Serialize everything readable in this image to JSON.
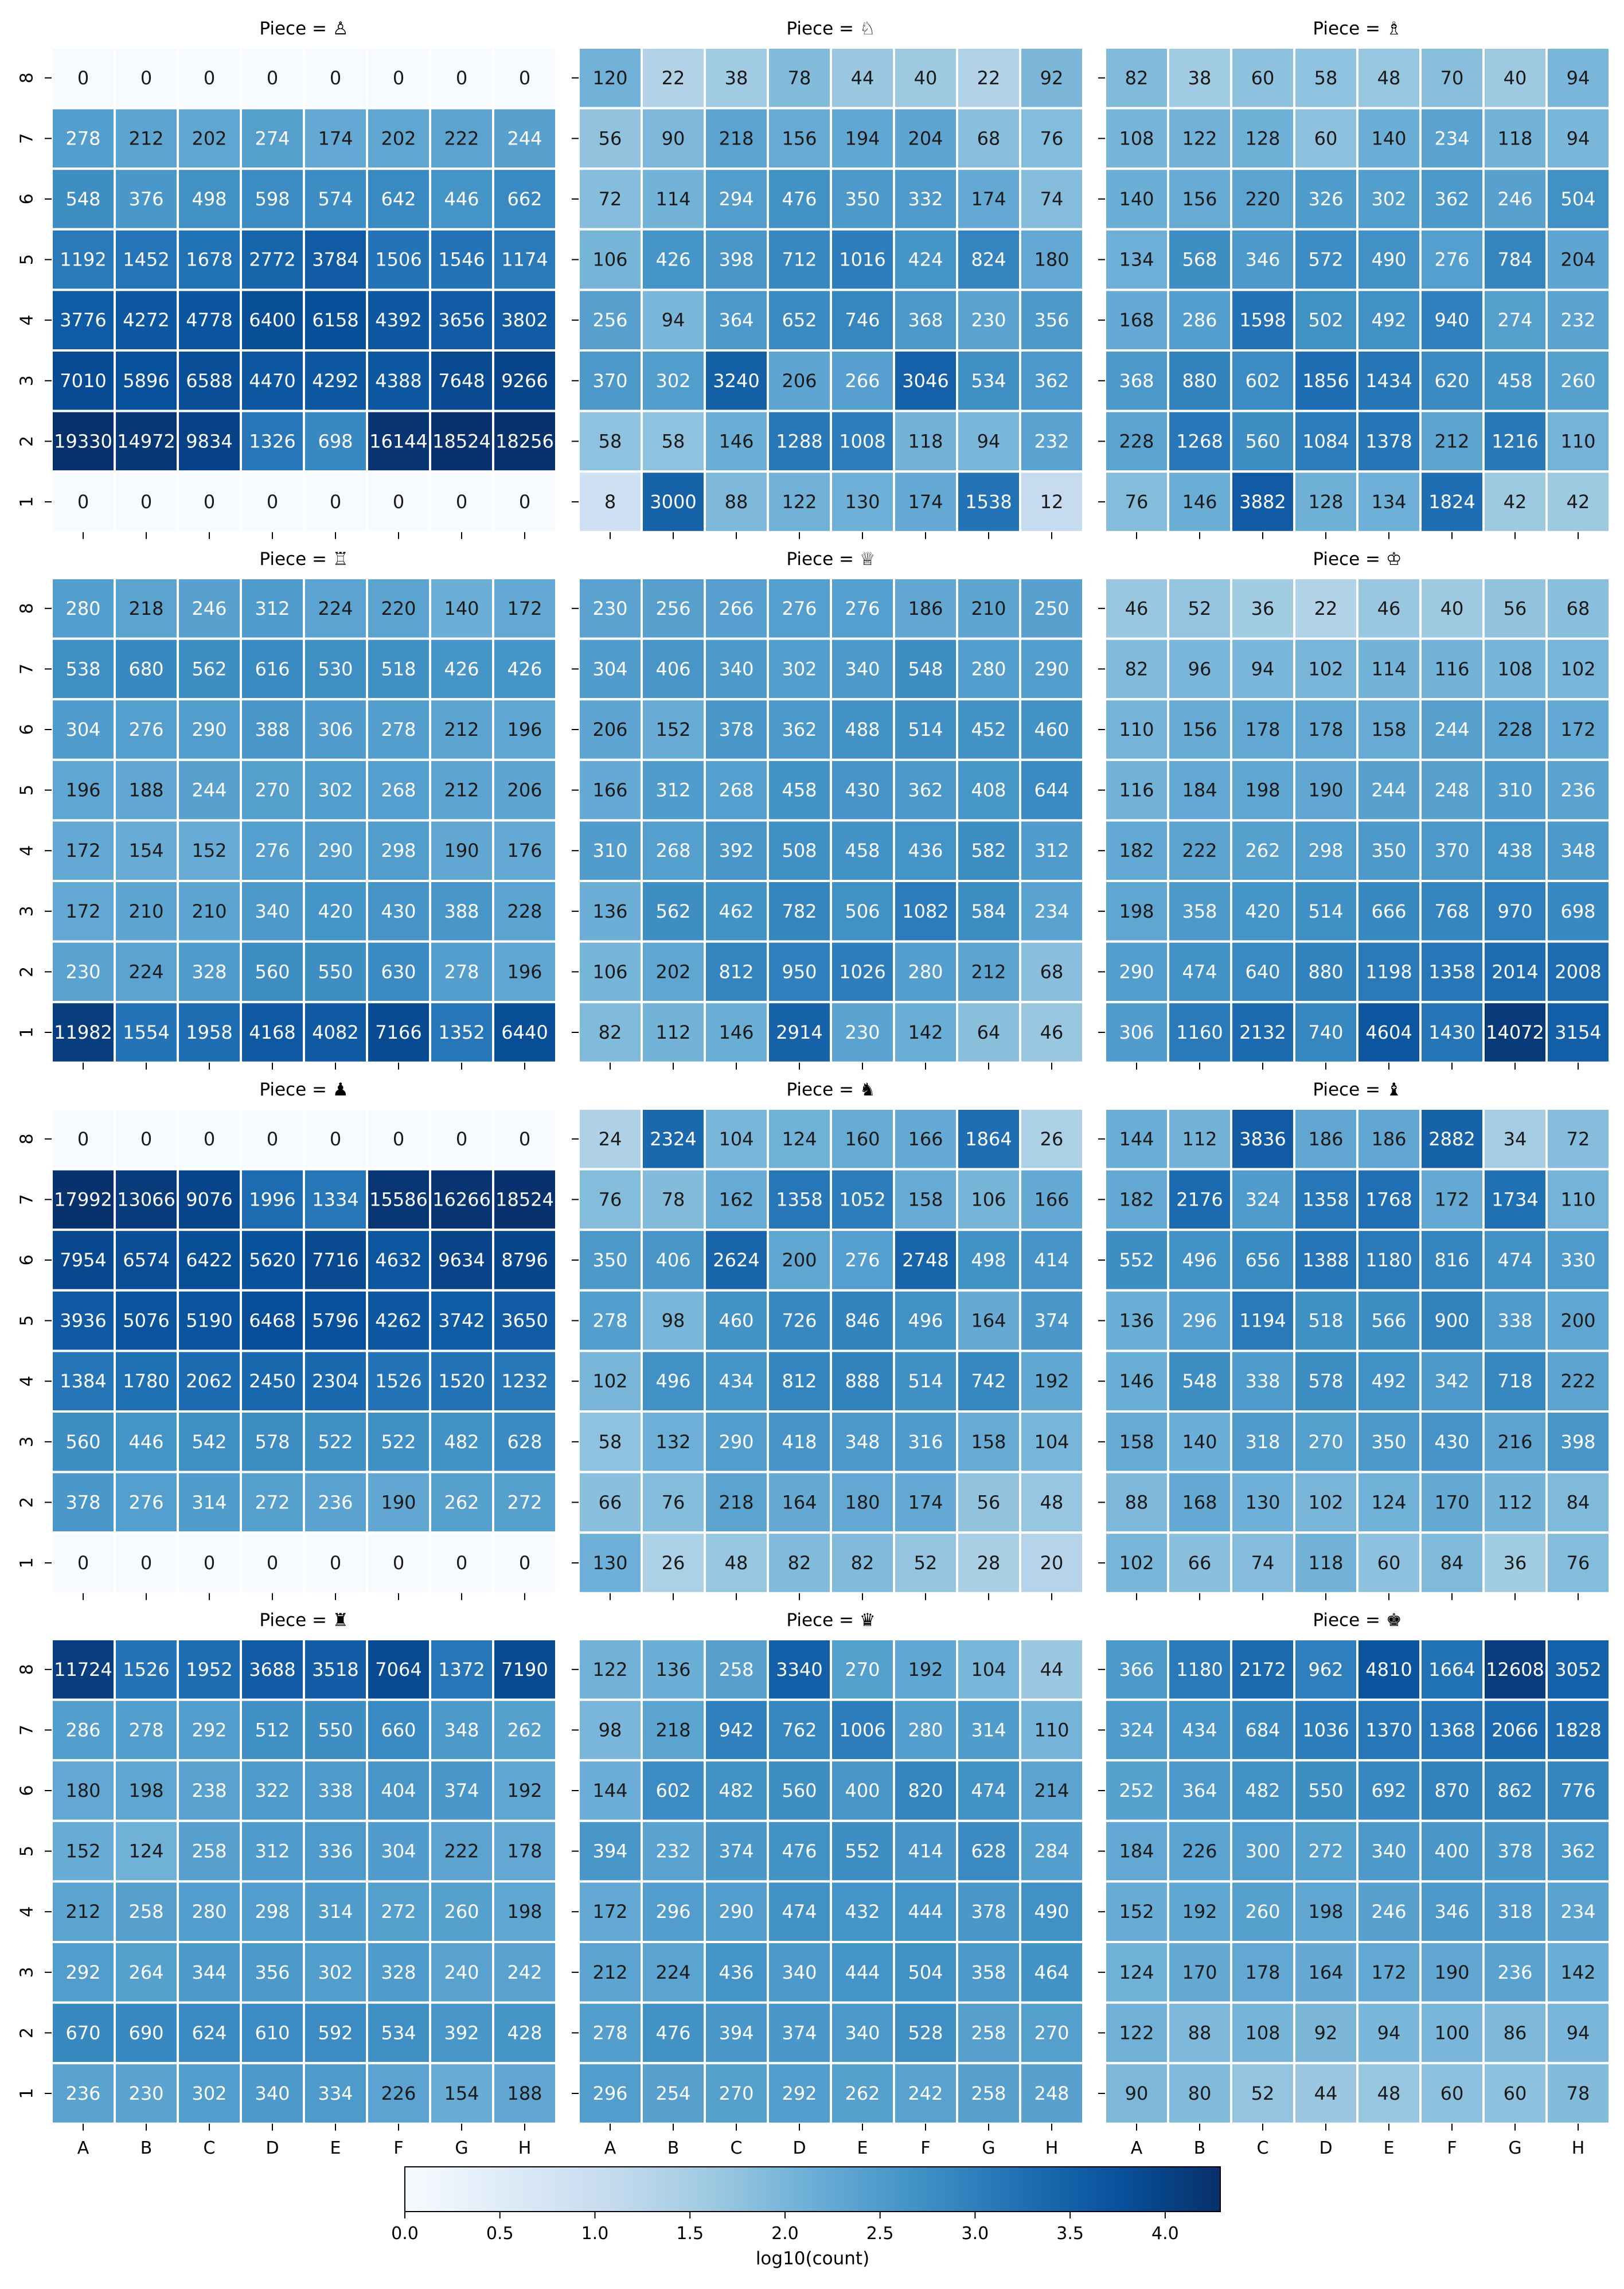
{
  "chart_data": {
    "type": "heatmap",
    "layout": "4 rows × 3 columns of small multiples",
    "color_scale": "log10(count)",
    "colormap": "Blues",
    "colors": {
      "low": "#f7fbff",
      "high": "#08306b",
      "grid": "#ffffff",
      "text_light": "#ffffff",
      "text_dark": "#1a1a1a"
    },
    "files": [
      "A",
      "B",
      "C",
      "D",
      "E",
      "F",
      "G",
      "H"
    ],
    "ranks": [
      "8",
      "7",
      "6",
      "5",
      "4",
      "3",
      "2",
      "1"
    ],
    "colorbar": {
      "label": "log10(count)",
      "min": 0.0,
      "max": 4.29,
      "ticks": [
        0.0,
        0.5,
        1.0,
        1.5,
        2.0,
        2.5,
        3.0,
        3.5,
        4.0
      ],
      "tick_labels": [
        "0.0",
        "0.5",
        "1.0",
        "1.5",
        "2.0",
        "2.5",
        "3.0",
        "3.5",
        "4.0"
      ]
    },
    "panels": [
      {
        "title": "Piece = ♙",
        "values": [
          [
            0,
            0,
            0,
            0,
            0,
            0,
            0,
            0
          ],
          [
            278,
            212,
            202,
            274,
            174,
            202,
            222,
            244
          ],
          [
            548,
            376,
            498,
            598,
            574,
            642,
            446,
            662
          ],
          [
            1192,
            1452,
            1678,
            2772,
            3784,
            1506,
            1546,
            1174
          ],
          [
            3776,
            4272,
            4778,
            6400,
            6158,
            4392,
            3656,
            3802
          ],
          [
            7010,
            5896,
            6588,
            4470,
            4292,
            4388,
            7648,
            9266
          ],
          [
            19330,
            14972,
            9834,
            1326,
            698,
            16144,
            18524,
            18256
          ],
          [
            0,
            0,
            0,
            0,
            0,
            0,
            0,
            0
          ]
        ]
      },
      {
        "title": "Piece = ♘",
        "values": [
          [
            120,
            22,
            38,
            78,
            44,
            40,
            22,
            92
          ],
          [
            56,
            90,
            218,
            156,
            194,
            204,
            68,
            76
          ],
          [
            72,
            114,
            294,
            476,
            350,
            332,
            174,
            74
          ],
          [
            106,
            426,
            398,
            712,
            1016,
            424,
            824,
            180
          ],
          [
            256,
            94,
            364,
            652,
            746,
            368,
            230,
            356
          ],
          [
            370,
            302,
            3240,
            206,
            266,
            3046,
            534,
            362
          ],
          [
            58,
            58,
            146,
            1288,
            1008,
            118,
            94,
            232
          ],
          [
            8,
            3000,
            88,
            122,
            130,
            174,
            1538,
            12
          ]
        ]
      },
      {
        "title": "Piece = ♗",
        "values": [
          [
            82,
            38,
            60,
            58,
            48,
            70,
            40,
            94
          ],
          [
            108,
            122,
            128,
            60,
            140,
            234,
            118,
            94
          ],
          [
            140,
            156,
            220,
            326,
            302,
            362,
            246,
            504
          ],
          [
            134,
            568,
            346,
            572,
            490,
            276,
            784,
            204
          ],
          [
            168,
            286,
            1598,
            502,
            492,
            940,
            274,
            232
          ],
          [
            368,
            880,
            602,
            1856,
            1434,
            620,
            458,
            260
          ],
          [
            228,
            1268,
            560,
            1084,
            1378,
            212,
            1216,
            110
          ],
          [
            76,
            146,
            3882,
            128,
            134,
            1824,
            42,
            42
          ]
        ]
      },
      {
        "title": "Piece = ♖",
        "values": [
          [
            280,
            218,
            246,
            312,
            224,
            220,
            140,
            172
          ],
          [
            538,
            680,
            562,
            616,
            530,
            518,
            426,
            426
          ],
          [
            304,
            276,
            290,
            388,
            306,
            278,
            212,
            196
          ],
          [
            196,
            188,
            244,
            270,
            302,
            268,
            212,
            206
          ],
          [
            172,
            154,
            152,
            276,
            290,
            298,
            190,
            176
          ],
          [
            172,
            210,
            210,
            340,
            420,
            430,
            388,
            228
          ],
          [
            230,
            224,
            328,
            560,
            550,
            630,
            278,
            196
          ],
          [
            11982,
            1554,
            1958,
            4168,
            4082,
            7166,
            1352,
            6440
          ]
        ]
      },
      {
        "title": "Piece = ♕",
        "values": [
          [
            230,
            256,
            266,
            276,
            276,
            186,
            210,
            250
          ],
          [
            304,
            406,
            340,
            302,
            340,
            548,
            280,
            290
          ],
          [
            206,
            152,
            378,
            362,
            488,
            514,
            452,
            460
          ],
          [
            166,
            312,
            268,
            458,
            430,
            362,
            408,
            644
          ],
          [
            310,
            268,
            392,
            508,
            458,
            436,
            582,
            312
          ],
          [
            136,
            562,
            462,
            782,
            506,
            1082,
            584,
            234
          ],
          [
            106,
            202,
            812,
            950,
            1026,
            280,
            212,
            68
          ],
          [
            82,
            112,
            146,
            2914,
            230,
            142,
            64,
            46
          ]
        ]
      },
      {
        "title": "Piece = ♔",
        "values": [
          [
            46,
            52,
            36,
            22,
            46,
            40,
            56,
            68
          ],
          [
            82,
            96,
            94,
            102,
            114,
            116,
            108,
            102
          ],
          [
            110,
            156,
            178,
            178,
            158,
            244,
            228,
            172
          ],
          [
            116,
            184,
            198,
            190,
            244,
            248,
            310,
            236
          ],
          [
            182,
            222,
            262,
            298,
            350,
            370,
            438,
            348
          ],
          [
            198,
            358,
            420,
            514,
            666,
            768,
            970,
            698
          ],
          [
            290,
            474,
            640,
            880,
            1198,
            1358,
            2014,
            2008
          ],
          [
            306,
            1160,
            2132,
            740,
            4604,
            1430,
            14072,
            3154
          ]
        ]
      },
      {
        "title": "Piece = ♟",
        "values": [
          [
            0,
            0,
            0,
            0,
            0,
            0,
            0,
            0
          ],
          [
            17992,
            13066,
            9076,
            1996,
            1334,
            15586,
            16266,
            18524
          ],
          [
            7954,
            6574,
            6422,
            5620,
            7716,
            4632,
            9634,
            8796
          ],
          [
            3936,
            5076,
            5190,
            6468,
            5796,
            4262,
            3742,
            3650
          ],
          [
            1384,
            1780,
            2062,
            2450,
            2304,
            1526,
            1520,
            1232
          ],
          [
            560,
            446,
            542,
            578,
            522,
            522,
            482,
            628
          ],
          [
            378,
            276,
            314,
            272,
            236,
            190,
            262,
            272
          ],
          [
            0,
            0,
            0,
            0,
            0,
            0,
            0,
            0
          ]
        ]
      },
      {
        "title": "Piece = ♞",
        "values": [
          [
            24,
            2324,
            104,
            124,
            160,
            166,
            1864,
            26
          ],
          [
            76,
            78,
            162,
            1358,
            1052,
            158,
            106,
            166
          ],
          [
            350,
            406,
            2624,
            200,
            276,
            2748,
            498,
            414
          ],
          [
            278,
            98,
            460,
            726,
            846,
            496,
            164,
            374
          ],
          [
            102,
            496,
            434,
            812,
            888,
            514,
            742,
            192
          ],
          [
            58,
            132,
            290,
            418,
            348,
            316,
            158,
            104
          ],
          [
            66,
            76,
            218,
            164,
            180,
            174,
            56,
            48
          ],
          [
            130,
            26,
            48,
            82,
            82,
            52,
            28,
            20
          ]
        ]
      },
      {
        "title": "Piece = ♝",
        "values": [
          [
            144,
            112,
            3836,
            186,
            186,
            2882,
            34,
            72
          ],
          [
            182,
            2176,
            324,
            1358,
            1768,
            172,
            1734,
            110
          ],
          [
            552,
            496,
            656,
            1388,
            1180,
            816,
            474,
            330
          ],
          [
            136,
            296,
            1194,
            518,
            566,
            900,
            338,
            200
          ],
          [
            146,
            548,
            338,
            578,
            492,
            342,
            718,
            222
          ],
          [
            158,
            140,
            318,
            270,
            350,
            430,
            216,
            398
          ],
          [
            88,
            168,
            130,
            102,
            124,
            170,
            112,
            84
          ],
          [
            102,
            66,
            74,
            118,
            60,
            84,
            36,
            76
          ]
        ]
      },
      {
        "title": "Piece = ♜",
        "values": [
          [
            11724,
            1526,
            1952,
            3688,
            3518,
            7064,
            1372,
            7190
          ],
          [
            286,
            278,
            292,
            512,
            550,
            660,
            348,
            262
          ],
          [
            180,
            198,
            238,
            322,
            338,
            404,
            374,
            192
          ],
          [
            152,
            124,
            258,
            312,
            336,
            304,
            222,
            178
          ],
          [
            212,
            258,
            280,
            298,
            314,
            272,
            260,
            198
          ],
          [
            292,
            264,
            344,
            356,
            302,
            328,
            240,
            242
          ],
          [
            670,
            690,
            624,
            610,
            592,
            534,
            392,
            428
          ],
          [
            236,
            230,
            302,
            340,
            334,
            226,
            154,
            188
          ]
        ]
      },
      {
        "title": "Piece = ♛",
        "values": [
          [
            122,
            136,
            258,
            3340,
            270,
            192,
            104,
            44
          ],
          [
            98,
            218,
            942,
            762,
            1006,
            280,
            314,
            110
          ],
          [
            144,
            602,
            482,
            560,
            400,
            820,
            474,
            214
          ],
          [
            394,
            232,
            374,
            476,
            552,
            414,
            628,
            284
          ],
          [
            172,
            296,
            290,
            474,
            432,
            444,
            378,
            490
          ],
          [
            212,
            224,
            436,
            340,
            444,
            504,
            358,
            464
          ],
          [
            278,
            476,
            394,
            374,
            340,
            528,
            258,
            270
          ],
          [
            296,
            254,
            270,
            292,
            262,
            242,
            258,
            248
          ]
        ]
      },
      {
        "title": "Piece = ♚",
        "values": [
          [
            366,
            1180,
            2172,
            962,
            4810,
            1664,
            12608,
            3052
          ],
          [
            324,
            434,
            684,
            1036,
            1370,
            1368,
            2066,
            1828
          ],
          [
            252,
            364,
            482,
            550,
            692,
            870,
            862,
            776
          ],
          [
            184,
            226,
            300,
            272,
            340,
            400,
            378,
            362
          ],
          [
            152,
            192,
            260,
            198,
            246,
            346,
            318,
            234
          ],
          [
            124,
            170,
            178,
            164,
            172,
            190,
            236,
            142
          ],
          [
            122,
            88,
            108,
            92,
            94,
            100,
            86,
            94
          ],
          [
            90,
            80,
            52,
            44,
            48,
            60,
            60,
            78
          ]
        ]
      }
    ]
  }
}
